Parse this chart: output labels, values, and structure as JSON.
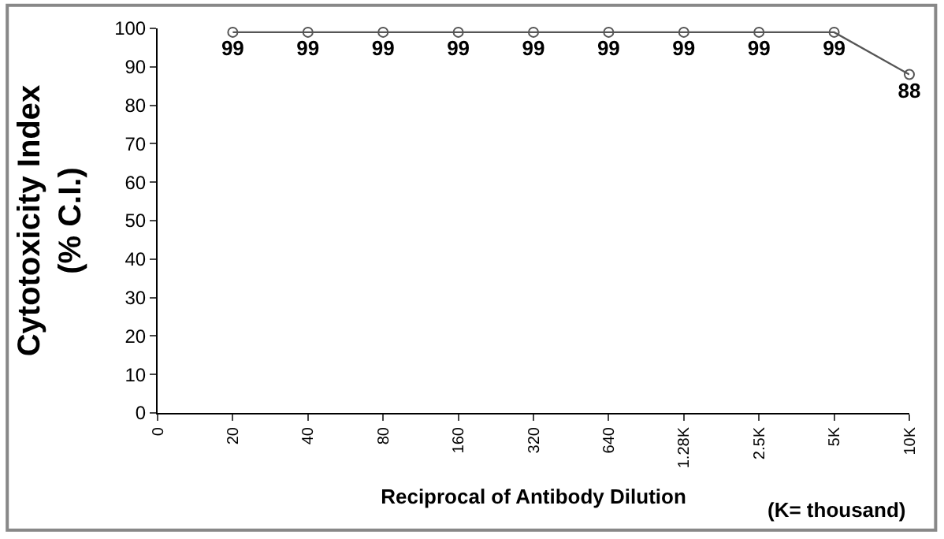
{
  "chart_data": {
    "type": "line",
    "categories": [
      "0",
      "20",
      "40",
      "80",
      "160",
      "320",
      "640",
      "1.28K",
      "2.5K",
      "5K",
      "10K"
    ],
    "series": [
      {
        "color": "#555555",
        "values": [
          null,
          99,
          99,
          99,
          99,
          99,
          99,
          99,
          99,
          99,
          88
        ]
      }
    ],
    "xlabel": "Reciprocal of Antibody Dilution",
    "ylabel": "Cytotoxicity Index\n(% C.I.)",
    "annotations": [
      "(K= thousand)"
    ],
    "ylim": [
      0,
      100
    ],
    "yticks": [
      0,
      10,
      20,
      30,
      40,
      50,
      60,
      70,
      80,
      90,
      100
    ],
    "marker": "circle",
    "line_style": "solid",
    "data_labels": true
  }
}
